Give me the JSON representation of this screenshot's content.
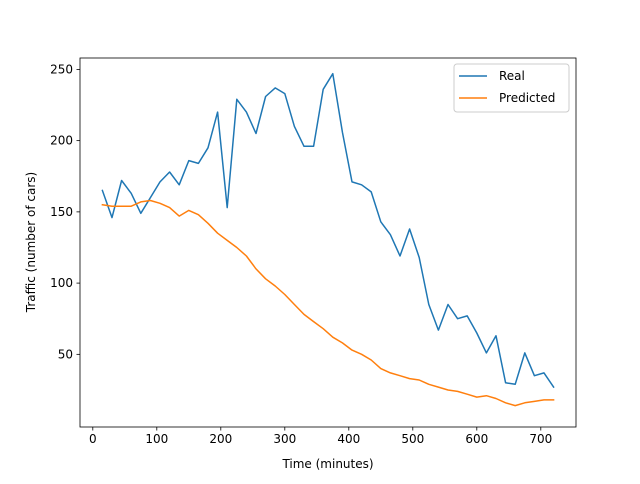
{
  "chart_data": {
    "type": "line",
    "title": "",
    "xlabel": "Time (minutes)",
    "ylabel": "Traffic (number of cars)",
    "xlim": [
      -20,
      755
    ],
    "ylim": [
      -1,
      258
    ],
    "xticks": [
      0,
      100,
      200,
      300,
      400,
      500,
      600,
      700
    ],
    "yticks": [
      50,
      100,
      150,
      200,
      250
    ],
    "grid": false,
    "legend_position": "top-right",
    "x": [
      15,
      30,
      45,
      60,
      75,
      90,
      105,
      120,
      135,
      150,
      165,
      180,
      195,
      210,
      225,
      240,
      255,
      270,
      285,
      300,
      315,
      330,
      345,
      360,
      375,
      390,
      405,
      420,
      435,
      450,
      465,
      480,
      495,
      510,
      525,
      540,
      555,
      570,
      585,
      600,
      615,
      630,
      645,
      660,
      675,
      690,
      705,
      720
    ],
    "series": [
      {
        "name": "Real",
        "color": "#1f77b4",
        "values": [
          165,
          146,
          172,
          163,
          149,
          160,
          171,
          178,
          169,
          186,
          184,
          195,
          220,
          153,
          229,
          220,
          205,
          231,
          237,
          233,
          210,
          196,
          196,
          236,
          247,
          206,
          171,
          169,
          164,
          143,
          134,
          119,
          138,
          118,
          85,
          67,
          85,
          75,
          77,
          65,
          51,
          63,
          30,
          29,
          51,
          35,
          37,
          27
        ]
      },
      {
        "name": "Predicted",
        "color": "#ff7f0e",
        "values": [
          155,
          154,
          154,
          154,
          157,
          158,
          156,
          153,
          147,
          151,
          148,
          142,
          135,
          130,
          125,
          119,
          110,
          103,
          98,
          92,
          85,
          78,
          73,
          68,
          62,
          58,
          53,
          50,
          46,
          40,
          37,
          35,
          33,
          32,
          29,
          27,
          25,
          24,
          22,
          20,
          21,
          19,
          16,
          14,
          16,
          17,
          18,
          18
        ]
      }
    ]
  }
}
